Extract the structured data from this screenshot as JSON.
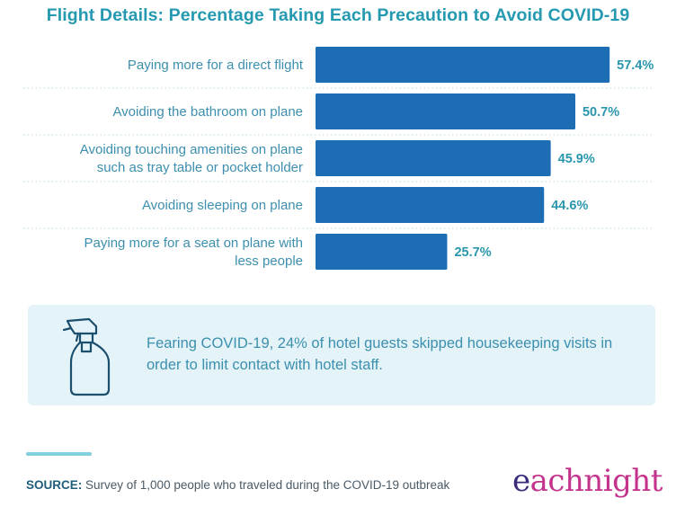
{
  "title": "Flight Details: Percentage Taking Each Precaution to Avoid COVID-19",
  "chart_data": {
    "type": "bar",
    "orientation": "horizontal",
    "categories": [
      [
        "Paying more for a direct flight"
      ],
      [
        "Avoiding the bathroom on plane"
      ],
      [
        "Avoiding touching amenities on plane",
        "such as tray table or pocket holder"
      ],
      [
        "Avoiding sleeping on plane"
      ],
      [
        "Paying more for a seat on plane with",
        "less people"
      ]
    ],
    "values": [
      57.4,
      50.7,
      45.9,
      44.6,
      25.7
    ],
    "value_labels": [
      "57.4%",
      "50.7%",
      "45.9%",
      "44.6%",
      "25.7%"
    ],
    "unit": "%",
    "xlim": [
      0,
      100
    ],
    "bar_color": "#1c6db3",
    "grid": "dotted row separators",
    "legend": "none"
  },
  "callout": {
    "icon": "spray-bottle-icon",
    "text": "Fearing COVID-19, 24% of hotel guests skipped housekeeping visits in order to limit contact with hotel staff."
  },
  "source": {
    "label": "SOURCE:",
    "text": " Survey of 1,000 people who traveled during the COVID-19 outbreak"
  },
  "brand": {
    "name": "eachnight",
    "first_letter": "e",
    "rest": "achnight"
  },
  "colors": {
    "title": "#2499b0",
    "bar": "#1c6db3",
    "callout_bg": "#e3f3f8",
    "brand": "#c3338c",
    "brand_accent": "#3b2a7a"
  }
}
